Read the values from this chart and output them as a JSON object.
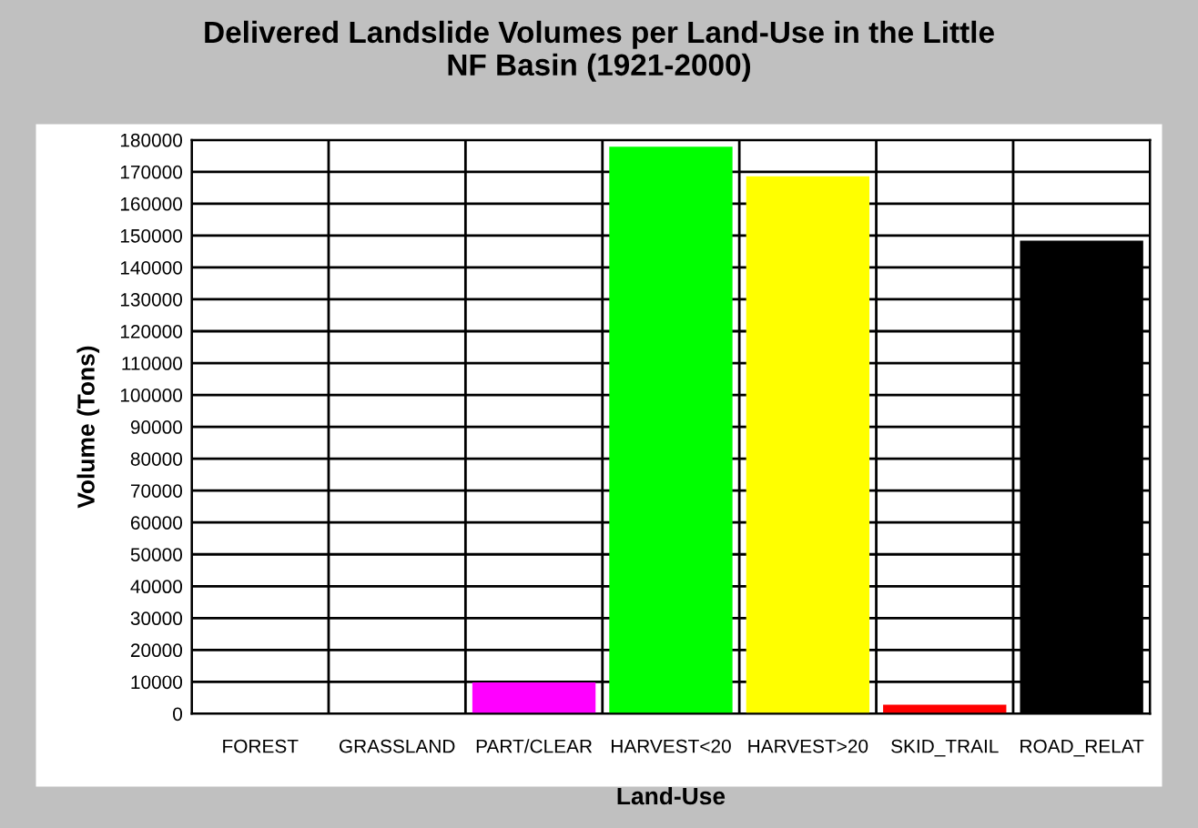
{
  "chart_data": {
    "type": "bar",
    "title": "Delivered Landslide Volumes per Land-Use in the Little\nNF Basin (1921-2000)",
    "xlabel": "Land-Use",
    "ylabel": "Volume (Tons)",
    "categories": [
      "FOREST",
      "GRASSLAND",
      "PART/CLEAR",
      "HARVEST<20",
      "HARVEST>20",
      "SKID_TRAIL",
      "ROAD_RELAT"
    ],
    "values": [
      0,
      0,
      9800,
      177900,
      168600,
      2800,
      148400
    ],
    "colors": [
      "#ffffff",
      "#ffffff",
      "#ff00ff",
      "#00ff00",
      "#ffff00",
      "#ff0000",
      "#000000"
    ],
    "ylim": [
      0,
      180000
    ],
    "yticks": [
      0,
      10000,
      20000,
      30000,
      40000,
      50000,
      60000,
      70000,
      80000,
      90000,
      100000,
      110000,
      120000,
      130000,
      140000,
      150000,
      160000,
      170000,
      180000
    ],
    "grid": true,
    "legend": false
  }
}
